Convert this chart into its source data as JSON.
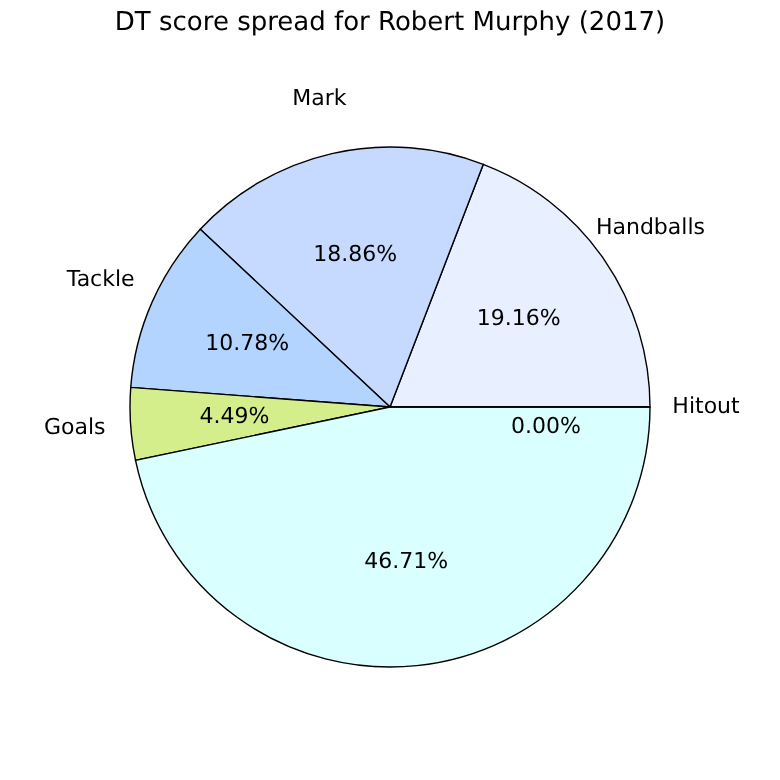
{
  "chart_data": {
    "type": "pie",
    "title": "DT score spread for Robert Murphy (2017)",
    "categories": [
      "Handballs",
      "Mark",
      "Tackle",
      "Goals",
      null,
      "Hitout"
    ],
    "values": [
      19.16,
      18.86,
      10.78,
      4.49,
      46.71,
      0.0
    ],
    "value_labels": [
      "19.16%",
      "18.86%",
      "10.78%",
      "4.49%",
      "46.71%",
      "0.00%"
    ],
    "colors": [
      "#e8f0ff",
      "#c6d9ff",
      "#b3d4ff",
      "#d4ee8c",
      "#d9ffff",
      "#ffffff"
    ],
    "legend": false
  }
}
